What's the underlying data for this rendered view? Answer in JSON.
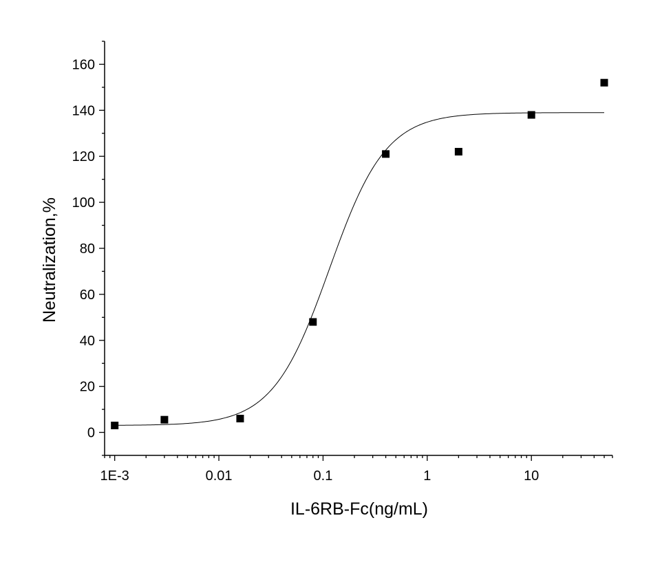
{
  "chart_data": {
    "type": "scatter",
    "title": "",
    "xlabel": "IL-6RB-Fc(ng/mL)",
    "ylabel": "Neutralization,%",
    "x_scale": "log",
    "xlim": [
      0.0008,
      60
    ],
    "ylim": [
      -10,
      170
    ],
    "x_ticks": [
      {
        "value": 0.001,
        "label": "1E-3"
      },
      {
        "value": 0.01,
        "label": "0.01"
      },
      {
        "value": 0.1,
        "label": "0.1"
      },
      {
        "value": 1,
        "label": "1"
      },
      {
        "value": 10,
        "label": "10"
      }
    ],
    "y_ticks": [
      0,
      20,
      40,
      60,
      80,
      100,
      120,
      140,
      160
    ],
    "grid": false,
    "legend": "none",
    "series": [
      {
        "kind": "points",
        "marker": "square",
        "color": "#000000",
        "points": [
          {
            "x": 0.001,
            "y": 3
          },
          {
            "x": 0.003,
            "y": 5.5
          },
          {
            "x": 0.016,
            "y": 6
          },
          {
            "x": 0.08,
            "y": 48
          },
          {
            "x": 0.4,
            "y": 121
          },
          {
            "x": 2,
            "y": 122
          },
          {
            "x": 10,
            "y": 138
          },
          {
            "x": 50,
            "y": 152
          }
        ]
      },
      {
        "kind": "fit-curve",
        "model": "4PL",
        "color": "#000000",
        "bottom": 3,
        "top": 139,
        "ec50": 0.115,
        "hill": 1.6,
        "x_range": [
          0.001,
          50
        ]
      }
    ]
  }
}
